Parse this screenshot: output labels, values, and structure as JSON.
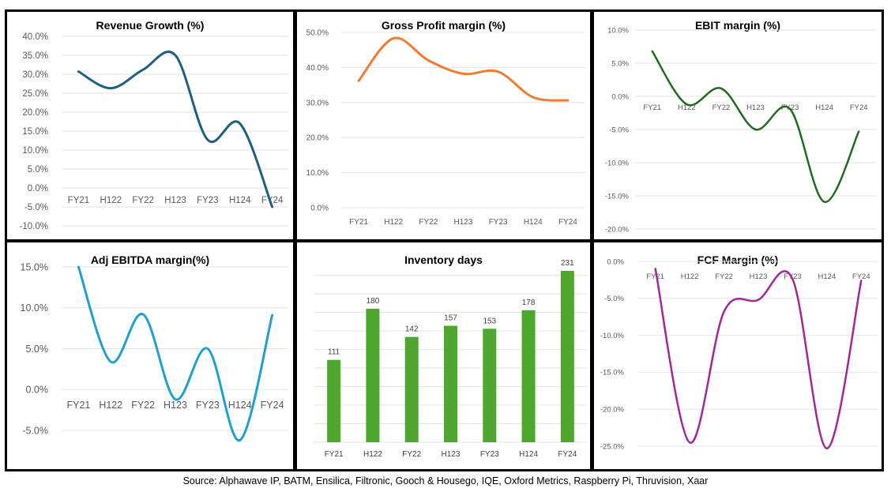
{
  "charts": [
    {
      "type": "line",
      "title": "Revenue Growth (%)",
      "categories": [
        "FY21",
        "H122",
        "FY22",
        "H123",
        "FY23",
        "H124",
        "FY24"
      ],
      "values": [
        30.7,
        26.3,
        31.2,
        35.0,
        12.7,
        17.0,
        -5.0
      ],
      "yticks": [
        40,
        35,
        30,
        25,
        20,
        15,
        10,
        5,
        0,
        -5,
        -10
      ],
      "ylim": [
        -10,
        40
      ],
      "color": "#1f5f7f",
      "grid": true
    },
    {
      "type": "line",
      "title": "Gross Profit margin (%)",
      "categories": [
        "FY21",
        "H122",
        "FY22",
        "H123",
        "FY23",
        "H124",
        "FY24"
      ],
      "values": [
        36.2,
        48.3,
        42.0,
        38.2,
        38.8,
        31.5,
        30.6
      ],
      "yticks": [
        50,
        40,
        30,
        20,
        10,
        0
      ],
      "ylim": [
        0,
        50
      ],
      "color": "#ed7d31",
      "grid": true
    },
    {
      "type": "line",
      "title": "EBIT margin (%)",
      "categories": [
        "FY21",
        "H122",
        "FY22",
        "H123",
        "FY23",
        "H124",
        "FY24"
      ],
      "values": [
        6.8,
        -1.2,
        1.2,
        -5.0,
        -1.9,
        -15.9,
        -5.3
      ],
      "yticks": [
        10,
        5,
        0,
        -5,
        -10,
        -15,
        -20
      ],
      "ylim": [
        -20,
        10
      ],
      "color": "#1e6b1e",
      "grid": true
    },
    {
      "type": "line",
      "title": "Adj EBITDA margin(%)",
      "categories": [
        "FY21",
        "H122",
        "FY22",
        "H123",
        "FY23",
        "H124",
        "FY24"
      ],
      "values": [
        15.0,
        3.4,
        9.2,
        -1.2,
        5.0,
        -6.2,
        9.1
      ],
      "yticks": [
        15,
        10,
        5,
        0,
        -5
      ],
      "ylim": [
        -7,
        15
      ],
      "color": "#1fa0d0",
      "grid": true
    },
    {
      "type": "bar",
      "title": "Inventory days",
      "categories": [
        "FY21",
        "H122",
        "FY22",
        "H123",
        "FY23",
        "H124",
        "FY24"
      ],
      "values": [
        111,
        180,
        142,
        157,
        153,
        178,
        231
      ],
      "data_labels": [
        "111",
        "180",
        "142",
        "157",
        "153",
        "178",
        "231"
      ],
      "color": "#4ea72e",
      "grid": true
    },
    {
      "type": "line",
      "title": "FCF Margin  (%)",
      "categories": [
        "FY21",
        "H122",
        "FY22",
        "H123",
        "FY23",
        "H124",
        "FY24"
      ],
      "values": [
        -1.0,
        -24.5,
        -6.8,
        -5.2,
        -2.4,
        -25.3,
        -2.6
      ],
      "yticks": [
        0,
        -5,
        -10,
        -15,
        -20,
        -25
      ],
      "ylim": [
        -27,
        0
      ],
      "color": "#a0279a",
      "grid": true
    }
  ],
  "source": "Source: Alphawave IP, BATM, Ensilica, Filtronic, Gooch & Housego, IQE, Oxford Metrics, Raspberry Pi, Thruvision, Xaar"
}
